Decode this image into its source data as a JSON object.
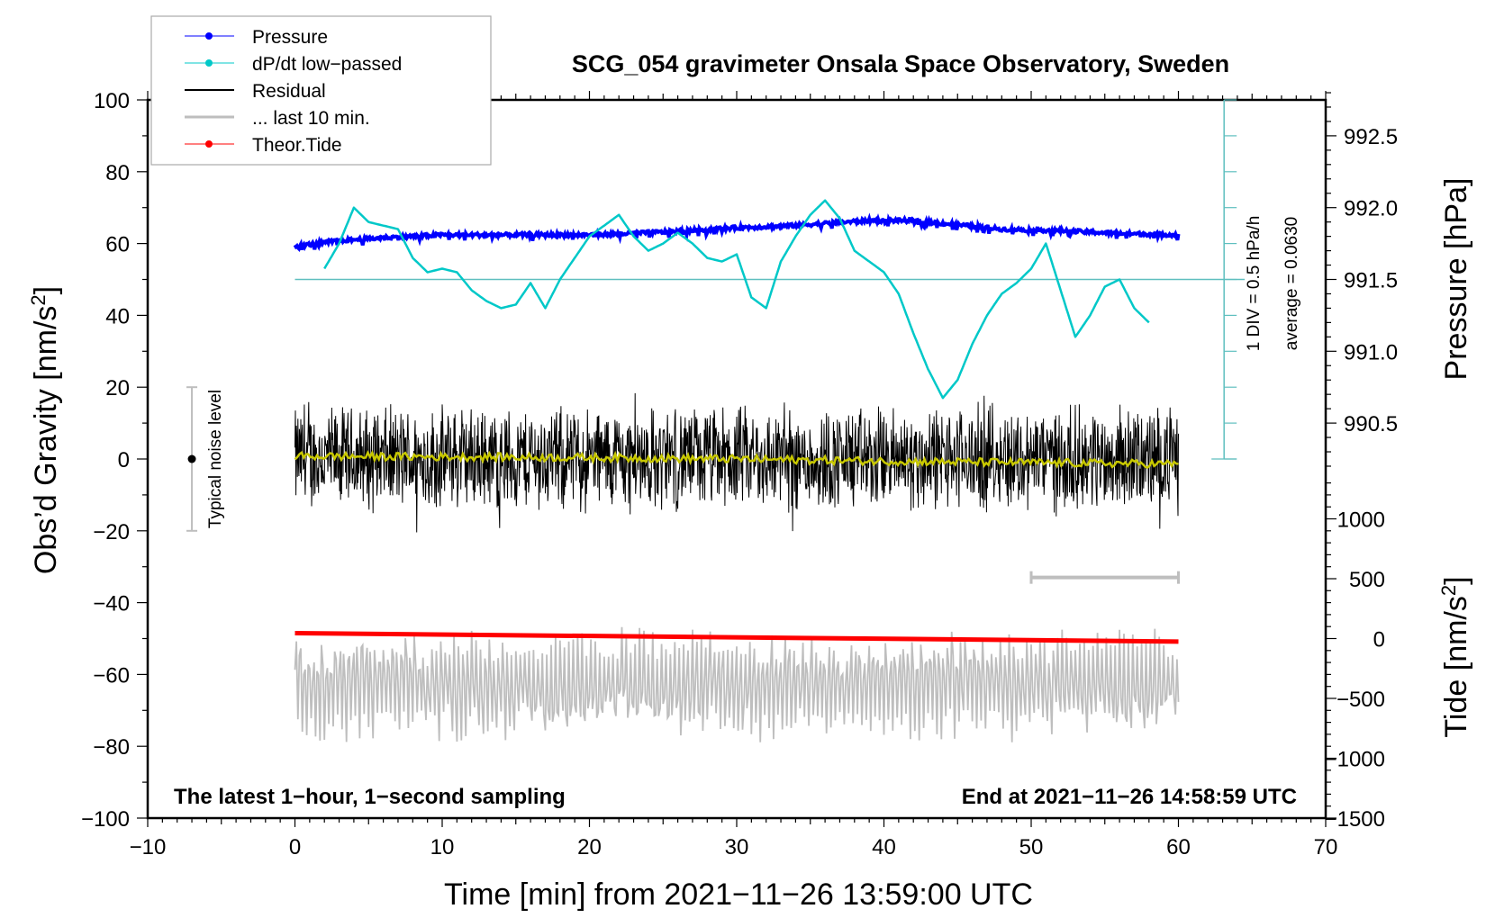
{
  "chart_data": {
    "type": "line",
    "title": "SCG_054 gravimeter Onsala Space Observatory, Sweden",
    "xlabel": "Time [min] from 2021−11−26 13:59:00 UTC",
    "ylabel_left": "Obs’d Gravity [nm/s²]",
    "ylabel_left_base": "Obs’d Gravity [nm/s",
    "ylabel_right_pressure_base": "Pressure [hPa]",
    "ylabel_right_tide_base": "Tide [nm/s",
    "unit_sup": "2",
    "unit_close": "]",
    "xlim": [
      -10,
      70
    ],
    "ylim_left": [
      -100,
      100
    ],
    "x_ticks": [
      -10,
      0,
      10,
      20,
      30,
      40,
      50,
      60,
      70
    ],
    "x_tick_labels": [
      "−10",
      "0",
      "10",
      "20",
      "30",
      "40",
      "50",
      "60",
      "70"
    ],
    "y_ticks_left": [
      100,
      80,
      60,
      40,
      20,
      0,
      -20,
      -40,
      -60,
      -80,
      -100
    ],
    "y_tick_labels_left": [
      "100",
      "80",
      "60",
      "40",
      "20",
      "0",
      "−20",
      "−40",
      "−60",
      "−80",
      "−100"
    ],
    "pressure_axis": {
      "ticks": [
        992.5,
        992.0,
        991.5,
        991.0,
        990.5
      ],
      "tick_labels": [
        "992.5",
        "992.0",
        "991.5",
        "991.0",
        "990.5"
      ],
      "mapping_note": "991.5 hPa aligns with left 50; 0.5 hPa per 20 left units"
    },
    "tide_axis": {
      "ticks": [
        1000,
        500,
        0,
        -500,
        -1000,
        -1500
      ],
      "tick_labels": [
        "1000",
        "500",
        "0",
        "−500",
        "−1000",
        "−1500"
      ],
      "mapping_note": "0 nm/s2 aligns with left -50; 500 per 16.67 left units"
    },
    "legend": {
      "placement": "top-left",
      "entries": [
        {
          "label": "Pressure",
          "color": "#0000ff",
          "marker": "dot"
        },
        {
          "label": "dP/dt low−passed",
          "color": "#00c8c8",
          "marker": "dot"
        },
        {
          "label": "Residual",
          "color": "#000000",
          "marker": "none"
        },
        {
          "label": "... last 10 min.",
          "color": "#bebebe",
          "marker": "none"
        },
        {
          "label": "Theor.Tide",
          "color": "#ff0000",
          "marker": "dot"
        }
      ]
    },
    "annotations": {
      "bottom_left": "The latest 1−hour, 1−second sampling",
      "bottom_right": "End at 2021−11−26 14:58:59 UTC",
      "dpdt_scale": "1 DIV = 0.5 hPa/h",
      "dpdt_average": "average = 0.0630",
      "noise_label": "Typical noise level",
      "noise_range": [
        -20,
        20
      ]
    },
    "series": [
      {
        "name": "Pressure",
        "unit": "hPa",
        "color": "#0000ff",
        "x": [
          0,
          3,
          6,
          10,
          15,
          20,
          25,
          30,
          33,
          36,
          39,
          42,
          45,
          48,
          52,
          56,
          60
        ],
        "values": [
          991.73,
          991.77,
          991.79,
          991.81,
          991.81,
          991.81,
          991.83,
          991.86,
          991.87,
          991.89,
          991.91,
          991.91,
          991.88,
          991.85,
          991.84,
          991.82,
          991.81
        ]
      },
      {
        "name": "dP/dt low-passed",
        "unit": "left-axis units (scale 1 DIV = 0.5 hPa/h, zero line at 50)",
        "color": "#00c8c8",
        "x": [
          2,
          3,
          4,
          5,
          6,
          7,
          8,
          9,
          10,
          11,
          12,
          13,
          14,
          15,
          16,
          17,
          18,
          19,
          20,
          21,
          22,
          23,
          24,
          25,
          26,
          27,
          28,
          29,
          30,
          31,
          32,
          33,
          34,
          35,
          36,
          37,
          38,
          39,
          40,
          41,
          42,
          43,
          44,
          45,
          46,
          47,
          48,
          49,
          50,
          51,
          52,
          53,
          54,
          55,
          56,
          57,
          58
        ],
        "values": [
          53,
          60,
          70,
          66,
          65,
          64,
          56,
          52,
          53,
          52,
          47,
          44,
          42,
          43,
          49,
          42,
          50,
          56,
          62,
          65,
          68,
          62,
          58,
          60,
          63,
          60,
          56,
          55,
          57,
          45,
          42,
          55,
          62,
          68,
          72,
          67,
          58,
          55,
          52,
          46,
          35,
          25,
          17,
          22,
          32,
          40,
          46,
          49,
          53,
          60,
          47,
          34,
          40,
          48,
          50,
          42,
          38
        ]
      },
      {
        "name": "Residual",
        "unit": "nm/s2",
        "color": "#000000",
        "x_range": [
          0,
          60
        ],
        "envelope": [
          -15,
          15
        ],
        "extremes": {
          "max": 30,
          "min": -26
        },
        "smoothed_color": "#c8c800",
        "smoothed_x": [
          0,
          10,
          20,
          30,
          40,
          50,
          60
        ],
        "smoothed_values": [
          0.8,
          0.6,
          0.4,
          0,
          -0.6,
          -1.0,
          -1.4
        ]
      },
      {
        "name": "... last 10 min.",
        "unit": "left-axis units (10-min segment stretched over 0-60 min)",
        "color": "#bebebe",
        "x_range": [
          0,
          60
        ],
        "center": -63,
        "envelope": [
          -77,
          -47
        ],
        "extremes": {
          "max": -37,
          "min": -87
        },
        "time_bar_x": [
          50,
          60
        ],
        "time_bar_y": -33
      },
      {
        "name": "Theor.Tide",
        "unit": "nm/s2",
        "color": "#ff0000",
        "x": [
          0,
          60
        ],
        "values": [
          45,
          -25
        ]
      }
    ]
  }
}
